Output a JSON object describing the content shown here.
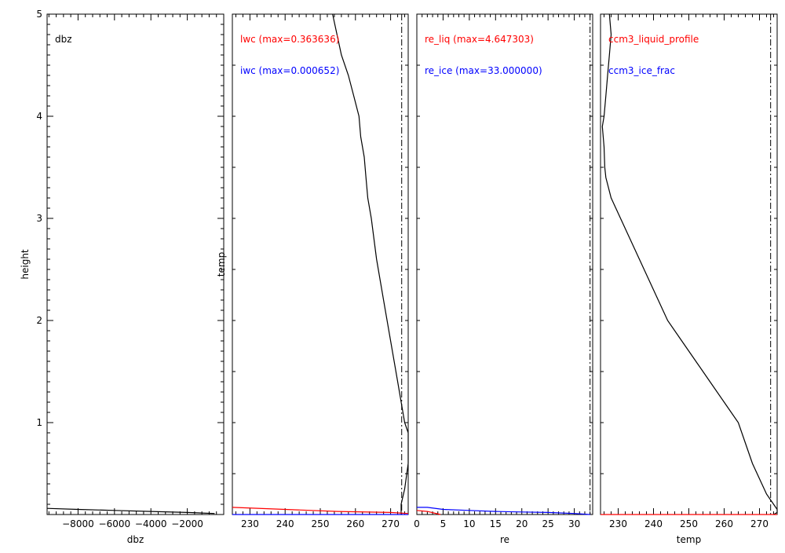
{
  "chart_data": [
    {
      "type": "line",
      "title": "",
      "xlabel": "dbz",
      "ylabel": "height",
      "xlim": [
        -9700,
        0
      ],
      "ylim": [
        0.1,
        5
      ],
      "xticks": [
        -8000,
        -6000,
        -4000,
        -2000
      ],
      "xtick_labels": [
        "−8000",
        "−6000",
        "−4000",
        "−2000"
      ],
      "yticks": [
        1,
        2,
        3,
        4,
        5
      ],
      "ytick_labels": [
        "1",
        "2",
        "3",
        "4",
        "5"
      ],
      "legend": [
        {
          "text": "dbz",
          "color": "#000000"
        }
      ],
      "series": [
        {
          "name": "dbz",
          "color": "#000000",
          "x": [
            -9700,
            -8000,
            -6000,
            -4000,
            -2000,
            -500
          ],
          "y": [
            0.16,
            0.15,
            0.14,
            0.13,
            0.12,
            0.11
          ]
        }
      ]
    },
    {
      "type": "line",
      "title": "",
      "xlabel": "",
      "ylabel": "temp",
      "xlim": [
        225,
        275
      ],
      "ylim": [
        0.1,
        5
      ],
      "xticks": [
        230,
        240,
        250,
        260,
        270
      ],
      "xtick_labels": [
        "230",
        "240",
        "250",
        "260",
        "270"
      ],
      "yticks": [],
      "ytick_labels": [],
      "legend": [
        {
          "text": "lwc (max=0.363636)",
          "color": "#ff0000"
        },
        {
          "text": "iwc (max=0.000652)",
          "color": "#0000ff"
        }
      ],
      "series": [
        {
          "name": "",
          "color": "#000000",
          "x": [
            253.5,
            256,
            258,
            259.5,
            261,
            261.5,
            262.5,
            263,
            263.5,
            264.5,
            266,
            268,
            270,
            272,
            274,
            275,
            275,
            274,
            273,
            273
          ],
          "y": [
            5,
            4.6,
            4.4,
            4.2,
            4.0,
            3.8,
            3.6,
            3.4,
            3.2,
            3.0,
            2.6,
            2.2,
            1.8,
            1.4,
            1.0,
            0.9,
            0.6,
            0.35,
            0.2,
            0.1
          ]
        },
        {
          "name": "",
          "color": "#ff0000",
          "x": [
            225,
            240,
            255,
            270,
            275
          ],
          "y": [
            0.17,
            0.15,
            0.13,
            0.12,
            0.11
          ]
        },
        {
          "name": "",
          "color": "#0000ff",
          "x": [
            225,
            275
          ],
          "y": [
            0.1,
            0.1
          ]
        }
      ],
      "vlines": [
        {
          "x": 273.15,
          "style": "dashdot",
          "color": "#000000"
        }
      ]
    },
    {
      "type": "line",
      "title": "",
      "xlabel": "re",
      "ylabel": "",
      "xlim": [
        0,
        33.5
      ],
      "ylim": [
        0.1,
        5
      ],
      "xticks": [
        0,
        5,
        10,
        15,
        20,
        25,
        30
      ],
      "xtick_labels": [
        "0",
        "5",
        "10",
        "15",
        "20",
        "25",
        "30"
      ],
      "yticks": [],
      "ytick_labels": [],
      "legend": [
        {
          "text": "re_liq (max=4.647303)",
          "color": "#ff0000"
        },
        {
          "text": "re_ice (max=33.000000)",
          "color": "#0000ff"
        }
      ],
      "series": [
        {
          "name": "",
          "color": "#0000ff",
          "x": [
            0,
            2,
            5,
            10,
            15,
            20,
            25,
            30,
            33
          ],
          "y": [
            0.17,
            0.17,
            0.15,
            0.14,
            0.13,
            0.125,
            0.12,
            0.11,
            0.1
          ]
        },
        {
          "name": "",
          "color": "#ff0000",
          "x": [
            0,
            2,
            4.5
          ],
          "y": [
            0.14,
            0.13,
            0.1
          ]
        }
      ],
      "vlines": [
        {
          "x": 33,
          "style": "dashdot",
          "color": "#000000"
        }
      ]
    },
    {
      "type": "line",
      "title": "",
      "xlabel": "temp",
      "ylabel": "",
      "xlim": [
        225,
        275
      ],
      "ylim": [
        0.1,
        5
      ],
      "xticks": [
        230,
        240,
        250,
        260,
        270
      ],
      "xtick_labels": [
        "230",
        "240",
        "250",
        "260",
        "270"
      ],
      "yticks": [],
      "ytick_labels": [],
      "legend": [
        {
          "text": "ccm3_liquid_profile",
          "color": "#ff0000"
        },
        {
          "text": "ccm3_ice_frac",
          "color": "#0000ff"
        }
      ],
      "series": [
        {
          "name": "",
          "color": "#000000",
          "x": [
            227.5,
            228,
            227.5,
            227,
            226.5,
            226,
            225.5,
            226,
            226.2,
            226.5,
            228,
            232,
            236,
            240,
            244,
            248,
            252,
            256,
            260,
            264,
            266,
            268,
            270,
            272,
            274,
            275,
            275,
            274
          ],
          "y": [
            5,
            4.8,
            4.6,
            4.4,
            4.2,
            4.0,
            3.9,
            3.7,
            3.5,
            3.4,
            3.2,
            2.9,
            2.6,
            2.3,
            2.0,
            1.8,
            1.6,
            1.4,
            1.2,
            1.0,
            0.8,
            0.6,
            0.45,
            0.3,
            0.2,
            0.15,
            0.12,
            0.1
          ]
        },
        {
          "name": "",
          "color": "#ff0000",
          "x": [
            225,
            275
          ],
          "y": [
            0.1,
            0.1
          ]
        }
      ],
      "vlines": [
        {
          "x": 273.15,
          "style": "dashdot",
          "color": "#000000"
        }
      ]
    }
  ]
}
